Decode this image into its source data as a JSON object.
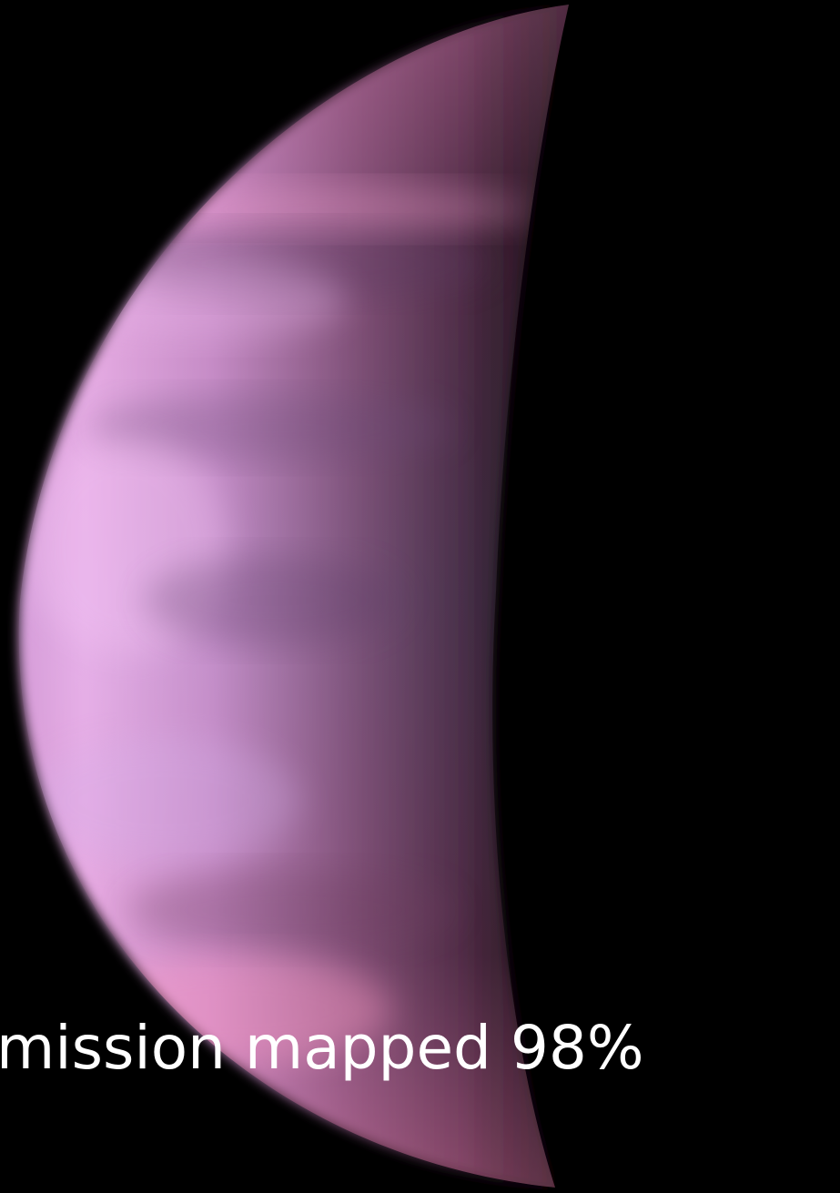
{
  "image": {
    "subject": "planet-crescent",
    "colors": {
      "background": "#000000",
      "limb_light": "#f2b6ee",
      "mid": "#b57ab4",
      "terminator": "#4a2a45",
      "caption_text": "#ffffff"
    }
  },
  "caption": {
    "text": "mission mapped 98%"
  }
}
